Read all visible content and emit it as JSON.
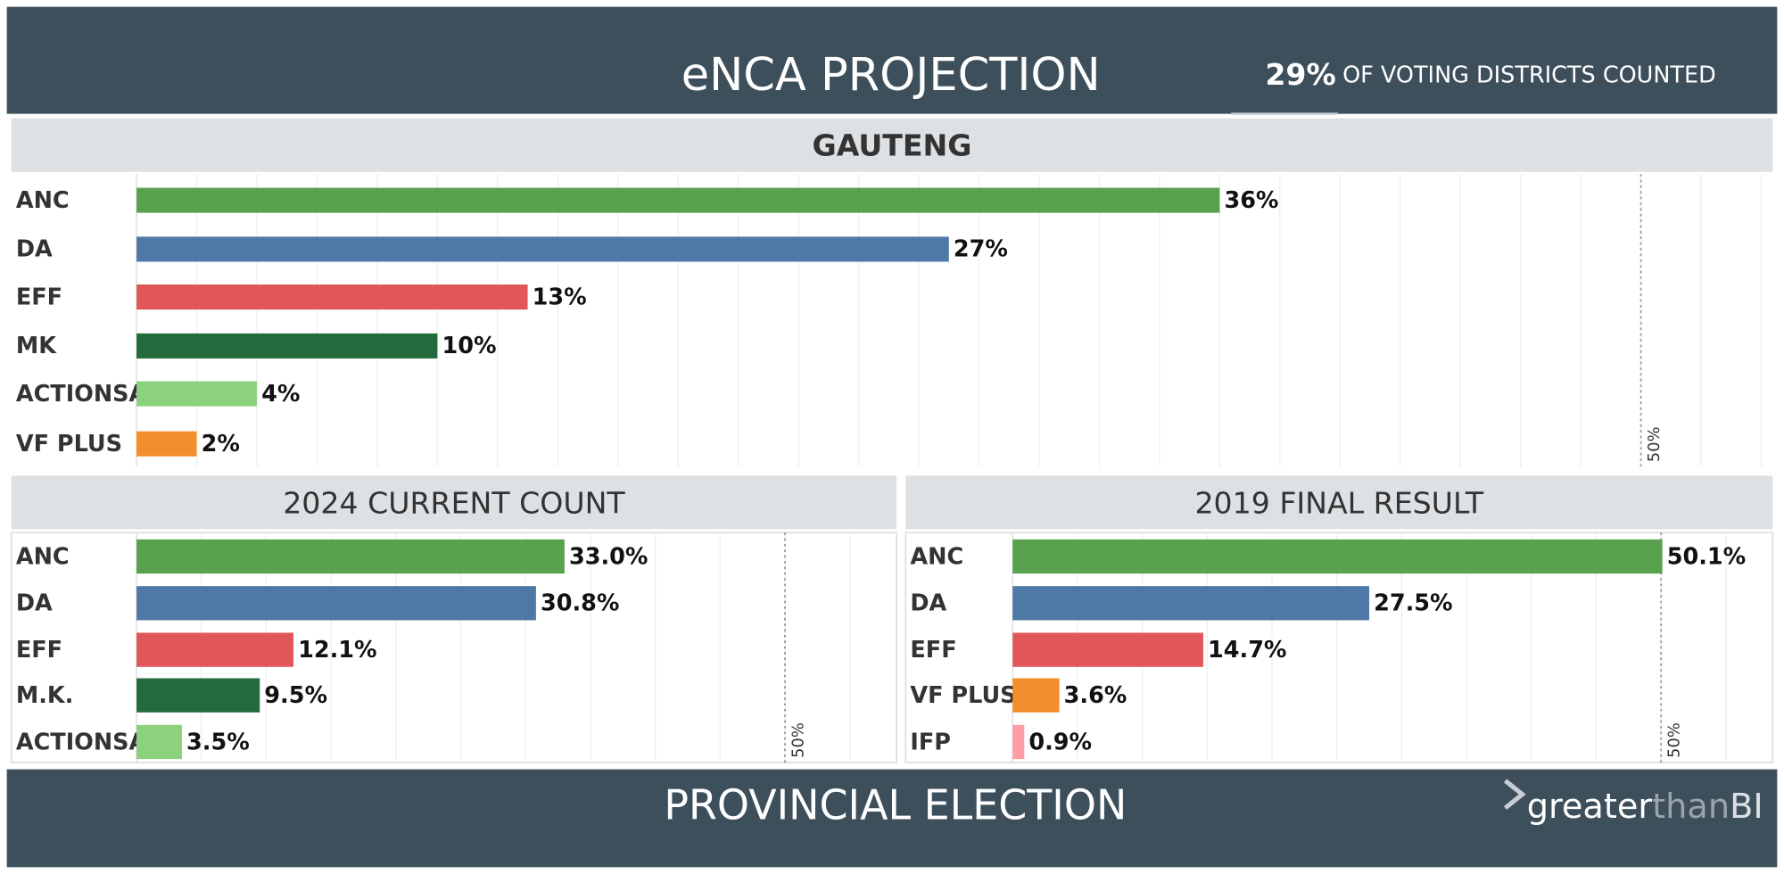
{
  "header": {
    "title": "eNCA PROJECTION",
    "counted_value": "29%",
    "counted_text": "OF VOTING DISTRICTS COUNTED"
  },
  "footer": {
    "title": "PROVINCIAL ELECTION",
    "logo": [
      "greater",
      "than",
      "BI"
    ]
  },
  "chart_data": [
    {
      "type": "bar",
      "orientation": "horizontal",
      "title": "GAUTENG",
      "categories": [
        "ANC",
        "DA",
        "EFF",
        "MK",
        "ACTIONSA",
        "VF PLUS"
      ],
      "values": [
        36,
        27,
        13,
        10,
        4,
        2
      ],
      "value_labels": [
        "36%",
        "27%",
        "13%",
        "10%",
        "4%",
        "2%"
      ],
      "colors": [
        "#59a14f",
        "#4e79a7",
        "#e15759",
        "#236b3c",
        "#8cd17d",
        "#f28e2b"
      ],
      "xlim": [
        0,
        54
      ],
      "xticks": [
        0,
        2,
        4,
        6,
        8,
        10,
        12,
        14,
        16,
        18,
        20,
        22,
        24,
        26,
        28,
        30,
        32,
        34,
        36,
        38,
        40,
        42,
        44,
        46,
        48,
        50,
        52,
        54
      ],
      "grid": true,
      "reference_line": {
        "value": 50,
        "label": "50%"
      }
    },
    {
      "type": "bar",
      "orientation": "horizontal",
      "title": "2024 CURRENT COUNT",
      "categories": [
        "ANC",
        "DA",
        "EFF",
        "M.K.",
        "ACTIONSA"
      ],
      "values": [
        33.0,
        30.8,
        12.1,
        9.5,
        3.5
      ],
      "value_labels": [
        "33.0%",
        "30.8%",
        "12.1%",
        "9.5%",
        "3.5%"
      ],
      "colors": [
        "#59a14f",
        "#4e79a7",
        "#e15759",
        "#236b3c",
        "#8cd17d"
      ],
      "xlim": [
        0,
        58.6
      ],
      "xticks": [
        0,
        5,
        10,
        15,
        20,
        25,
        30,
        35,
        40,
        45,
        50,
        55
      ],
      "grid": true,
      "reference_line": {
        "value": 50,
        "label": "50%"
      }
    },
    {
      "type": "bar",
      "orientation": "horizontal",
      "title": "2019 FINAL RESULT",
      "categories": [
        "ANC",
        "DA",
        "EFF",
        "VF PLUS",
        "IFP"
      ],
      "values": [
        50.1,
        27.5,
        14.7,
        3.6,
        0.9
      ],
      "value_labels": [
        "50.1%",
        "27.5%",
        "14.7%",
        "3.6%",
        "0.9%"
      ],
      "colors": [
        "#59a14f",
        "#4e79a7",
        "#e15759",
        "#f28e2b",
        "#ff9da7"
      ],
      "xlim": [
        0,
        58.6
      ],
      "xticks": [
        0,
        5,
        10,
        15,
        20,
        25,
        30,
        35,
        40,
        45,
        50,
        55
      ],
      "grid": true,
      "reference_line": {
        "value": 50,
        "label": "50%"
      }
    }
  ]
}
